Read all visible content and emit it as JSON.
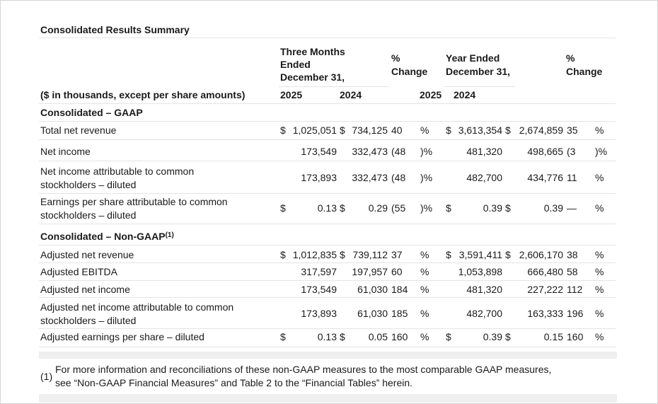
{
  "title": "Consolidated Results Summary",
  "header": {
    "three_months_1": "Three Months",
    "three_months_2": "Ended",
    "three_months_3": "December 31,",
    "pct_change_1": "%",
    "pct_change_2": "Change",
    "year_ended_1": "Year Ended",
    "year_ended_2": "December 31,",
    "pct_change_b1": "%",
    "pct_change_b2": "Change",
    "units_label": "($ in thousands, except per share amounts)",
    "y2025a": "2025",
    "y2024a": "2024",
    "y2025b": "2025",
    "y2024b": "2024"
  },
  "sections": {
    "gaap": "Consolidated – GAAP",
    "non_gaap": "Consolidated – Non-GAAP",
    "non_gaap_sup": "(1)"
  },
  "rows": [
    {
      "label1": "Total net revenue",
      "label2": "",
      "d1": "$",
      "q25": "1,025,051",
      "d2": "$",
      "q24": "734,125",
      "qc": "40",
      "qs": "%",
      "d3": "$",
      "y25": "3,613,354",
      "d4": "$",
      "y24": "2,674,859",
      "yc": "35",
      "ys": "%"
    },
    {
      "label1": "Net income",
      "label2": "",
      "d1": "",
      "q25": "173,549",
      "d2": "",
      "q24": "332,473",
      "qc": "(48",
      "qs": ")%",
      "d3": "",
      "y25": "481,320",
      "d4": "",
      "y24": "498,665",
      "yc": "(3",
      "ys": ")%"
    },
    {
      "label1": "Net income attributable to common",
      "label2": "stockholders – diluted",
      "d1": "",
      "q25": "173,893",
      "d2": "",
      "q24": "332,473",
      "qc": "(48",
      "qs": ")%",
      "d3": "",
      "y25": "482,700",
      "d4": "",
      "y24": "434,776",
      "yc": "11",
      "ys": "%"
    },
    {
      "label1": "Earnings per share attributable to common",
      "label2": "stockholders – diluted",
      "d1": "$",
      "q25": "0.13",
      "d2": "$",
      "q24": "0.29",
      "qc": "(55",
      "qs": ")%",
      "d3": "$",
      "y25": "0.39",
      "d4": "$",
      "y24": "0.39",
      "yc": "—",
      "ys": "%"
    },
    {
      "label1": "Adjusted net revenue",
      "label2": "",
      "d1": "$",
      "q25": "1,012,835",
      "d2": "$",
      "q24": "739,112",
      "qc": "37",
      "qs": "%",
      "d3": "$",
      "y25": "3,591,411",
      "d4": "$",
      "y24": "2,606,170",
      "yc": "38",
      "ys": "%"
    },
    {
      "label1": "Adjusted EBITDA",
      "label2": "",
      "d1": "",
      "q25": "317,597",
      "d2": "",
      "q24": "197,957",
      "qc": "60",
      "qs": "%",
      "d3": "",
      "y25": "1,053,898",
      "d4": "",
      "y24": "666,480",
      "yc": "58",
      "ys": "%"
    },
    {
      "label1": "Adjusted net income",
      "label2": "",
      "d1": "",
      "q25": "173,549",
      "d2": "",
      "q24": "61,030",
      "qc": "184",
      "qs": "%",
      "d3": "",
      "y25": "481,320",
      "d4": "",
      "y24": "227,222",
      "yc": "112",
      "ys": "%"
    },
    {
      "label1": "Adjusted net income attributable to common",
      "label2": "stockholders – diluted",
      "d1": "",
      "q25": "173,893",
      "d2": "",
      "q24": "61,030",
      "qc": "185",
      "qs": "%",
      "d3": "",
      "y25": "482,700",
      "d4": "",
      "y24": "163,333",
      "yc": "196",
      "ys": "%"
    },
    {
      "label1": "Adjusted earnings per share – diluted",
      "label2": "",
      "d1": "$",
      "q25": "0.13",
      "d2": "$",
      "q24": "0.05",
      "qc": "160",
      "qs": "%",
      "d3": "$",
      "y25": "0.39",
      "d4": "$",
      "y24": "0.15",
      "yc": "160",
      "ys": "%"
    }
  ],
  "footnote": {
    "mark": "(1)",
    "line1": "For more information and reconciliations of these non-GAAP measures to the most comparable GAAP measures,",
    "line2": "see “Non-GAAP Financial Measures” and Table 2 to the “Financial Tables” herein."
  }
}
